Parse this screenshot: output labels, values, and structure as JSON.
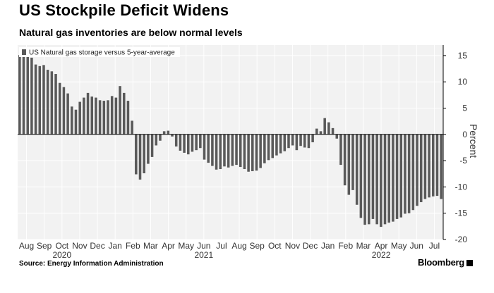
{
  "header": {
    "title": "US Stockpile Deficit Widens",
    "subtitle": "Natural gas inventories are below normal levels"
  },
  "footer": {
    "source": "Source: Energy Information Administration",
    "brand": "Bloomberg"
  },
  "chart_data": {
    "type": "bar",
    "title": "US Stockpile Deficit Widens",
    "subtitle": "Natural gas inventories are below normal levels",
    "ylabel": "Percent",
    "ylim": [
      -20,
      17
    ],
    "yticks": [
      15,
      10,
      5,
      0,
      -5,
      -10,
      -15,
      -20
    ],
    "grid": true,
    "legend": {
      "position": "top-left",
      "entries": [
        "US Natural gas storage versus 5-year-average"
      ]
    },
    "color": "#595959",
    "x_axis": {
      "month_labels": [
        "Aug",
        "Sep",
        "Oct",
        "Nov",
        "Dec",
        "Jan",
        "Feb",
        "Mar",
        "Apr",
        "May",
        "Jun",
        "Jul",
        "Aug",
        "Sep",
        "Oct",
        "Nov",
        "Dec",
        "Jan",
        "Feb",
        "Mar",
        "Apr",
        "May",
        "Jun",
        "Jul"
      ],
      "year_labels": [
        {
          "label": "2020",
          "month_index": 2
        },
        {
          "label": "2021",
          "month_index": 10
        },
        {
          "label": "2022",
          "month_index": 20
        }
      ]
    },
    "series": [
      {
        "name": "US Natural gas storage versus 5-year-average",
        "values": [
          15.1,
          15.3,
          15.0,
          14.6,
          13.3,
          13.0,
          13.2,
          12.3,
          12.0,
          11.5,
          9.8,
          9.0,
          7.8,
          5.3,
          4.7,
          6.2,
          7.0,
          7.9,
          7.2,
          7.0,
          6.5,
          6.4,
          6.5,
          7.3,
          7.0,
          9.2,
          7.9,
          6.4,
          2.6,
          -7.6,
          -8.6,
          -7.4,
          -5.6,
          -4.3,
          -2.1,
          -1.2,
          0.6,
          0.7,
          -0.4,
          -2.3,
          -3.1,
          -3.5,
          -3.8,
          -3.3,
          -3.0,
          -2.6,
          -4.8,
          -5.4,
          -6.0,
          -6.7,
          -6.6,
          -6.1,
          -6.3,
          -6.0,
          -5.8,
          -6.2,
          -6.6,
          -7.1,
          -7.0,
          -6.9,
          -6.4,
          -5.5,
          -4.9,
          -4.5,
          -4.0,
          -3.6,
          -3.2,
          -2.6,
          -2.1,
          -3.0,
          -2.2,
          -2.5,
          -2.6,
          -1.5,
          1.1,
          0.6,
          3.1,
          2.3,
          1.2,
          -0.8,
          -5.8,
          -9.7,
          -11.5,
          -10.6,
          -13.4,
          -15.9,
          -17.2,
          -17.1,
          -16.1,
          -17.1,
          -17.6,
          -17.1,
          -16.8,
          -16.6,
          -16.1,
          -15.8,
          -15.1,
          -15.0,
          -14.4,
          -13.6,
          -12.9,
          -12.3,
          -12.0,
          -11.8,
          -11.7,
          -12.3
        ]
      }
    ]
  }
}
